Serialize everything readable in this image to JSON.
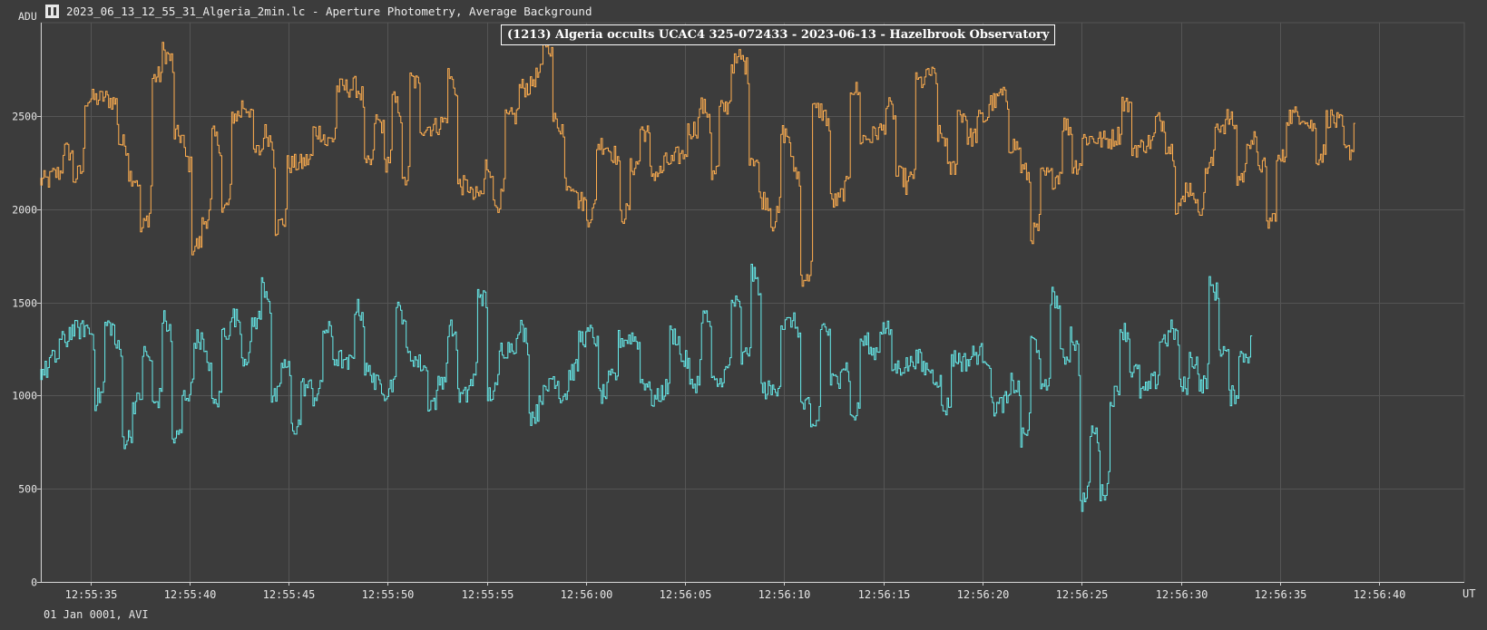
{
  "window": {
    "title": "2023_06_13_12_55_31_Algeria_2min.lc - Aperture Photometry, Average Background",
    "icon": "app-icon"
  },
  "chart_data": {
    "type": "line",
    "title": "(1213) Algeria occults UCAC4 325-072433 - 2023-06-13 - Hazelbrook Observatory",
    "ylabel": "ADU",
    "xlabel": "UT",
    "date_label": "01 Jan 0001, AVI",
    "ylim": [
      0,
      3000
    ],
    "xlim": [
      "12:55:32.5",
      "12:56:44.3"
    ],
    "yticks": [
      0,
      500,
      1000,
      1500,
      2000,
      2500
    ],
    "xticks": [
      "12:55:35",
      "12:55:40",
      "12:55:45",
      "12:55:50",
      "12:55:55",
      "12:56:00",
      "12:56:05",
      "12:56:10",
      "12:56:15",
      "12:56:20",
      "12:56:25",
      "12:56:30",
      "12:56:35",
      "12:56:40"
    ],
    "grid": true,
    "colors": {
      "background": "#3c3c3c",
      "grid": "#555555",
      "axis": "#cfcfcf"
    },
    "series": [
      {
        "color": "#ffae4f",
        "points": [
          [
            "12:55:32.5",
            2150
          ],
          [
            "12:55:33.1",
            2180
          ],
          [
            "12:55:33.7",
            2320
          ],
          [
            "12:55:34.2",
            2160
          ],
          [
            "12:55:34.8",
            2590
          ],
          [
            "12:55:35.7",
            2600
          ],
          [
            "12:55:36.5",
            2360
          ],
          [
            "12:55:37.0",
            2190
          ],
          [
            "12:55:37.6",
            1880
          ],
          [
            "12:55:38.2",
            2700
          ],
          [
            "12:55:38.7",
            2850
          ],
          [
            "12:55:39.3",
            2400
          ],
          [
            "12:55:39.8",
            2290
          ],
          [
            "12:55:40.2",
            1800
          ],
          [
            "12:55:40.7",
            1920
          ],
          [
            "12:55:41.2",
            2400
          ],
          [
            "12:55:41.7",
            1980
          ],
          [
            "12:55:42.2",
            2500
          ],
          [
            "12:55:42.7",
            2560
          ],
          [
            "12:55:43.3",
            2300
          ],
          [
            "12:55:43.8",
            2420
          ],
          [
            "12:55:44.4",
            1900
          ],
          [
            "12:55:45.0",
            2240
          ],
          [
            "12:55:45.8",
            2250
          ],
          [
            "12:55:46.3",
            2420
          ],
          [
            "12:55:46.9",
            2350
          ],
          [
            "12:55:47.5",
            2650
          ],
          [
            "12:55:48.4",
            2660
          ],
          [
            "12:55:48.9",
            2220
          ],
          [
            "12:55:49.4",
            2480
          ],
          [
            "12:55:49.9",
            2240
          ],
          [
            "12:55:50.3",
            2590
          ],
          [
            "12:55:50.8",
            2120
          ],
          [
            "12:55:51.2",
            2700
          ],
          [
            "12:55:51.7",
            2440
          ],
          [
            "12:55:52.6",
            2450
          ],
          [
            "12:55:53.1",
            2720
          ],
          [
            "12:55:53.6",
            2130
          ],
          [
            "12:55:54.3",
            2060
          ],
          [
            "12:55:55.0",
            2240
          ],
          [
            "12:55:55.4",
            2010
          ],
          [
            "12:55:56.0",
            2480
          ],
          [
            "12:55:56.7",
            2650
          ],
          [
            "12:55:57.4",
            2700
          ],
          [
            "12:55:57.9",
            2920
          ],
          [
            "12:55:58.4",
            2480
          ],
          [
            "12:55:59.0",
            2150
          ],
          [
            "12:55:59.6",
            2050
          ],
          [
            "12:56:00.1",
            1950
          ],
          [
            "12:56:00.6",
            2350
          ],
          [
            "12:56:01.2",
            2320
          ],
          [
            "12:56:01.8",
            1960
          ],
          [
            "12:56:02.3",
            2220
          ],
          [
            "12:56:02.8",
            2430
          ],
          [
            "12:56:03.3",
            2190
          ],
          [
            "12:56:04.0",
            2250
          ],
          [
            "12:56:04.6",
            2280
          ],
          [
            "12:56:05.2",
            2420
          ],
          [
            "12:56:05.8",
            2560
          ],
          [
            "12:56:06.4",
            2170
          ],
          [
            "12:56:06.8",
            2530
          ],
          [
            "12:56:07.4",
            2780
          ],
          [
            "12:56:07.8",
            2820
          ],
          [
            "12:56:08.3",
            2290
          ],
          [
            "12:56:08.8",
            2060
          ],
          [
            "12:56:09.4",
            1920
          ],
          [
            "12:56:09.9",
            2410
          ],
          [
            "12:56:10.4",
            2250
          ],
          [
            "12:56:10.9",
            1640
          ],
          [
            "12:56:11.2",
            1610
          ],
          [
            "12:56:11.5",
            2530
          ],
          [
            "12:56:11.9",
            2530
          ],
          [
            "12:56:12.4",
            2040
          ],
          [
            "12:56:12.9",
            2070
          ],
          [
            "12:56:13.4",
            2660
          ],
          [
            "12:56:13.9",
            2380
          ],
          [
            "12:56:14.6",
            2410
          ],
          [
            "12:56:15.2",
            2560
          ],
          [
            "12:56:15.7",
            2180
          ],
          [
            "12:56:16.2",
            2120
          ],
          [
            "12:56:16.7",
            2680
          ],
          [
            "12:56:17.3",
            2740
          ],
          [
            "12:56:17.8",
            2400
          ],
          [
            "12:56:18.3",
            2200
          ],
          [
            "12:56:18.8",
            2520
          ],
          [
            "12:56:19.3",
            2380
          ],
          [
            "12:56:19.8",
            2480
          ],
          [
            "12:56:20.4",
            2570
          ],
          [
            "12:56:20.9",
            2620
          ],
          [
            "12:56:21.4",
            2350
          ],
          [
            "12:56:22.0",
            2220
          ],
          [
            "12:56:22.5",
            1860
          ],
          [
            "12:56:23.0",
            2180
          ],
          [
            "12:56:23.6",
            2160
          ],
          [
            "12:56:24.1",
            2460
          ],
          [
            "12:56:24.6",
            2230
          ],
          [
            "12:56:25.1",
            2380
          ],
          [
            "12:56:25.9",
            2370
          ],
          [
            "12:56:26.6",
            2380
          ],
          [
            "12:56:27.1",
            2580
          ],
          [
            "12:56:27.6",
            2330
          ],
          [
            "12:56:28.2",
            2350
          ],
          [
            "12:56:28.8",
            2480
          ],
          [
            "12:56:29.3",
            2350
          ],
          [
            "12:56:29.8",
            2020
          ],
          [
            "12:56:30.3",
            2120
          ],
          [
            "12:56:30.8",
            2000
          ],
          [
            "12:56:31.3",
            2220
          ],
          [
            "12:56:31.8",
            2450
          ],
          [
            "12:56:32.4",
            2490
          ],
          [
            "12:56:32.9",
            2160
          ],
          [
            "12:56:33.4",
            2380
          ],
          [
            "12:56:33.9",
            2260
          ],
          [
            "12:56:34.4",
            1920
          ],
          [
            "12:56:34.9",
            2250
          ],
          [
            "12:56:35.4",
            2500
          ],
          [
            "12:56:35.9",
            2510
          ],
          [
            "12:56:36.4",
            2460
          ],
          [
            "12:56:36.9",
            2280
          ],
          [
            "12:56:37.4",
            2490
          ],
          [
            "12:56:37.8",
            2470
          ],
          [
            "12:56:38.3",
            2300
          ],
          [
            "12:56:38.8",
            2460
          ]
        ]
      },
      {
        "color": "#66ecec",
        "points": [
          [
            "12:55:32.5",
            1130
          ],
          [
            "12:55:33.0",
            1190
          ],
          [
            "12:55:33.5",
            1290
          ],
          [
            "12:55:34.0",
            1350
          ],
          [
            "12:55:34.8",
            1370
          ],
          [
            "12:55:35.3",
            970
          ],
          [
            "12:55:35.8",
            1380
          ],
          [
            "12:55:36.3",
            1280
          ],
          [
            "12:55:36.7",
            760
          ],
          [
            "12:55:37.2",
            950
          ],
          [
            "12:55:37.7",
            1230
          ],
          [
            "12:55:38.2",
            940
          ],
          [
            "12:55:38.7",
            1420
          ],
          [
            "12:55:39.2",
            760
          ],
          [
            "12:55:39.7",
            990
          ],
          [
            "12:55:40.3",
            1310
          ],
          [
            "12:55:40.8",
            1200
          ],
          [
            "12:55:41.2",
            940
          ],
          [
            "12:55:41.7",
            1340
          ],
          [
            "12:55:42.2",
            1430
          ],
          [
            "12:55:42.7",
            1200
          ],
          [
            "12:55:43.2",
            1390
          ],
          [
            "12:55:43.7",
            1600
          ],
          [
            "12:55:44.2",
            980
          ],
          [
            "12:55:44.7",
            1180
          ],
          [
            "12:55:45.2",
            820
          ],
          [
            "12:55:45.7",
            1050
          ],
          [
            "12:55:46.3",
            990
          ],
          [
            "12:55:46.8",
            1360
          ],
          [
            "12:55:47.3",
            1200
          ],
          [
            "12:55:47.9",
            1150
          ],
          [
            "12:55:48.4",
            1480
          ],
          [
            "12:55:48.9",
            1130
          ],
          [
            "12:55:49.4",
            1060
          ],
          [
            "12:55:49.9",
            1020
          ],
          [
            "12:55:50.5",
            1460
          ],
          [
            "12:55:51.0",
            1210
          ],
          [
            "12:55:51.5",
            1180
          ],
          [
            "12:55:52.1",
            960
          ],
          [
            "12:55:52.6",
            1070
          ],
          [
            "12:55:53.1",
            1370
          ],
          [
            "12:55:53.6",
            990
          ],
          [
            "12:55:54.1",
            1040
          ],
          [
            "12:55:54.6",
            1570
          ],
          [
            "12:55:55.1",
            1000
          ],
          [
            "12:55:55.7",
            1250
          ],
          [
            "12:55:56.2",
            1270
          ],
          [
            "12:55:56.7",
            1370
          ],
          [
            "12:55:57.2",
            890
          ],
          [
            "12:55:57.7",
            1000
          ],
          [
            "12:55:58.2",
            1100
          ],
          [
            "12:55:58.7",
            1000
          ],
          [
            "12:55:59.2",
            1120
          ],
          [
            "12:55:59.7",
            1310
          ],
          [
            "12:56:00.2",
            1340
          ],
          [
            "12:56:00.7",
            1000
          ],
          [
            "12:56:01.2",
            1080
          ],
          [
            "12:56:01.7",
            1300
          ],
          [
            "12:56:02.3",
            1320
          ],
          [
            "12:56:02.8",
            1080
          ],
          [
            "12:56:03.3",
            980
          ],
          [
            "12:56:03.8",
            1010
          ],
          [
            "12:56:04.3",
            1330
          ],
          [
            "12:56:04.8",
            1200
          ],
          [
            "12:56:05.3",
            1040
          ],
          [
            "12:56:05.9",
            1440
          ],
          [
            "12:56:06.4",
            1060
          ],
          [
            "12:56:06.9",
            1100
          ],
          [
            "12:56:07.4",
            1510
          ],
          [
            "12:56:07.9",
            1190
          ],
          [
            "12:56:08.4",
            1660
          ],
          [
            "12:56:08.9",
            1030
          ],
          [
            "12:56:09.4",
            1020
          ],
          [
            "12:56:09.9",
            1380
          ],
          [
            "12:56:10.4",
            1410
          ],
          [
            "12:56:10.9",
            950
          ],
          [
            "12:56:11.4",
            810
          ],
          [
            "12:56:11.9",
            1380
          ],
          [
            "12:56:12.4",
            1070
          ],
          [
            "12:56:12.9",
            1180
          ],
          [
            "12:56:13.4",
            870
          ],
          [
            "12:56:13.9",
            1290
          ],
          [
            "12:56:14.4",
            1230
          ],
          [
            "12:56:14.9",
            1370
          ],
          [
            "12:56:15.5",
            1150
          ],
          [
            "12:56:16.0",
            1160
          ],
          [
            "12:56:16.5",
            1200
          ],
          [
            "12:56:17.0",
            1150
          ],
          [
            "12:56:17.5",
            1110
          ],
          [
            "12:56:18.0",
            920
          ],
          [
            "12:56:18.5",
            1200
          ],
          [
            "12:56:19.0",
            1180
          ],
          [
            "12:56:19.5",
            1220
          ],
          [
            "12:56:20.0",
            1230
          ],
          [
            "12:56:20.5",
            940
          ],
          [
            "12:56:21.0",
            960
          ],
          [
            "12:56:21.5",
            1070
          ],
          [
            "12:56:22.0",
            760
          ],
          [
            "12:56:22.5",
            1300
          ],
          [
            "12:56:23.0",
            1000
          ],
          [
            "12:56:23.5",
            1540
          ],
          [
            "12:56:24.0",
            1200
          ],
          [
            "12:56:24.5",
            1340
          ],
          [
            "12:56:25.0",
            420
          ],
          [
            "12:56:25.5",
            820
          ],
          [
            "12:56:26.0",
            460
          ],
          [
            "12:56:26.5",
            980
          ],
          [
            "12:56:27.0",
            1360
          ],
          [
            "12:56:27.5",
            1140
          ],
          [
            "12:56:28.0",
            1020
          ],
          [
            "12:56:28.5",
            1060
          ],
          [
            "12:56:29.0",
            1300
          ],
          [
            "12:56:29.5",
            1360
          ],
          [
            "12:56:30.0",
            1040
          ],
          [
            "12:56:30.5",
            1200
          ],
          [
            "12:56:31.0",
            1030
          ],
          [
            "12:56:31.5",
            1590
          ],
          [
            "12:56:32.0",
            1260
          ],
          [
            "12:56:32.5",
            990
          ],
          [
            "12:56:33.0",
            1210
          ],
          [
            "12:56:33.6",
            1320
          ]
        ]
      }
    ]
  }
}
